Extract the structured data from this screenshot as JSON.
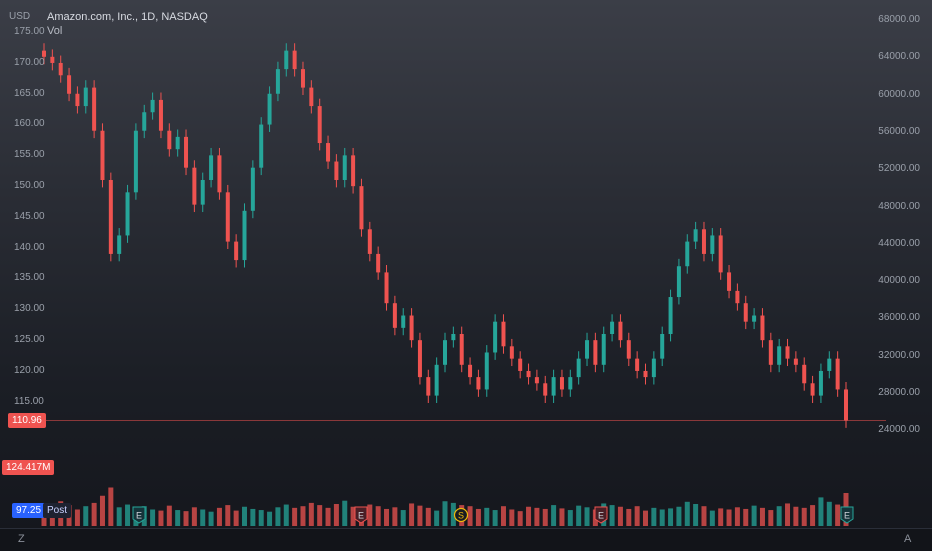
{
  "header": {
    "currency": "USD",
    "symbol_title": "Amazon.com, Inc., 1D, NASDAQ",
    "indicator": "Vol"
  },
  "price_axis": {
    "labels": [
      "175.00",
      "170.00",
      "165.00",
      "160.00",
      "155.00",
      "150.00",
      "145.00",
      "140.00",
      "135.00",
      "130.00",
      "125.00",
      "120.00",
      "115.00"
    ],
    "values": [
      175,
      170,
      165,
      160,
      155,
      150,
      145,
      140,
      135,
      130,
      125,
      120,
      115
    ]
  },
  "volume_axis": {
    "labels": [
      "68000.00",
      "64000.00",
      "60000.00",
      "56000.00",
      "52000.00",
      "48000.00",
      "44000.00",
      "40000.00",
      "36000.00",
      "32000.00",
      "28000.00",
      "24000.00"
    ],
    "values": [
      68000,
      64000,
      60000,
      56000,
      52000,
      48000,
      44000,
      40000,
      36000,
      32000,
      28000,
      24000
    ]
  },
  "tags": {
    "last_price": "110.96",
    "volume": "124.417M",
    "post_price": "97.25",
    "post_label": "Post"
  },
  "event_markers": [
    {
      "letter": "E",
      "kind": "earnings"
    },
    {
      "letter": "E",
      "kind": "earnings"
    },
    {
      "letter": "S",
      "kind": "split"
    },
    {
      "letter": "E",
      "kind": "earnings"
    },
    {
      "letter": "E",
      "kind": "earnings"
    }
  ],
  "bottom_bar": {
    "left": "Z",
    "right": "A"
  },
  "colors": {
    "up": "#26a69a",
    "down": "#ef5350",
    "last_price_tag": "#ef5350",
    "post_tag": "#2962ff"
  },
  "chart_data": {
    "type": "candlestick",
    "title": "Amazon.com, Inc., 1D, NASDAQ",
    "ylim": [
      112,
      176
    ],
    "price_series": [
      170,
      169,
      167,
      164,
      162,
      165,
      158,
      150,
      138,
      141,
      148,
      158,
      161,
      163,
      158,
      155,
      157,
      152,
      146,
      150,
      154,
      148,
      140,
      137,
      145,
      152,
      159,
      164,
      168,
      171,
      168,
      165,
      162,
      156,
      153,
      150,
      154,
      149,
      142,
      138,
      135,
      130,
      126,
      128,
      124,
      118,
      115,
      120,
      124,
      125,
      120,
      118,
      116,
      122,
      127,
      123,
      121,
      119,
      118,
      117,
      115,
      118,
      116,
      118,
      121,
      124,
      120,
      125,
      127,
      124,
      121,
      119,
      118,
      121,
      125,
      131,
      136,
      140,
      142,
      138,
      141,
      135,
      132,
      130,
      127,
      128,
      124,
      120,
      123,
      121,
      120,
      117,
      115,
      119,
      121,
      116,
      110.96
    ],
    "volume_series": [
      40,
      35,
      45,
      38,
      30,
      36,
      42,
      55,
      70,
      34,
      39,
      33,
      36,
      30,
      28,
      37,
      29,
      27,
      34,
      30,
      26,
      33,
      38,
      28,
      35,
      31,
      29,
      26,
      34,
      39,
      33,
      36,
      42,
      38,
      33,
      40,
      46,
      35,
      30,
      39,
      36,
      31,
      34,
      29,
      41,
      37,
      33,
      28,
      45,
      42,
      38,
      36,
      31,
      33,
      29,
      36,
      30,
      27,
      35,
      33,
      31,
      38,
      32,
      29,
      37,
      34,
      30,
      41,
      38,
      35,
      31,
      36,
      28,
      33,
      30,
      32,
      35,
      44,
      40,
      36,
      28,
      32,
      30,
      34,
      31,
      37,
      33,
      29,
      36,
      41,
      35,
      33,
      38,
      52,
      44,
      39,
      60
    ]
  }
}
